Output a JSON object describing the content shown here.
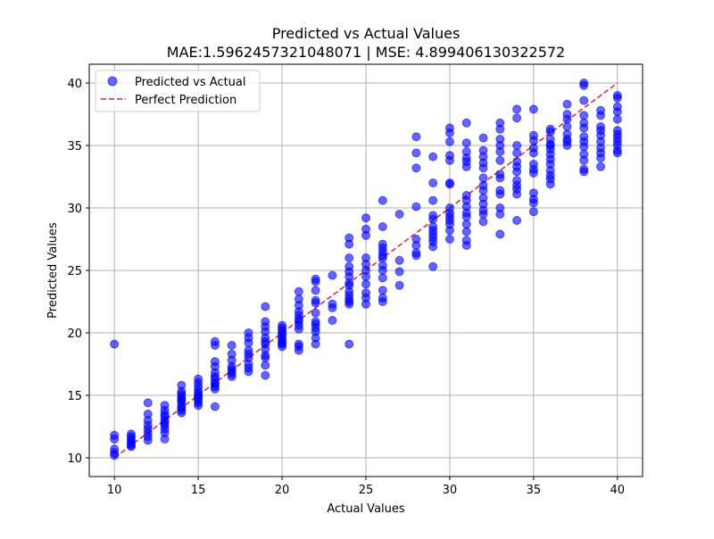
{
  "chart_data": {
    "type": "scatter",
    "title": "Predicted vs Actual Values",
    "subtitle": "MAE:1.5962457321048071 | MSE: 4.899406130322572",
    "xlabel": "Actual Values",
    "ylabel": "Predicted Values",
    "xlim": [
      8.5,
      41.5
    ],
    "ylim": [
      8.5,
      41.5
    ],
    "xticks": [
      10,
      15,
      20,
      25,
      30,
      35,
      40
    ],
    "yticks": [
      10,
      15,
      20,
      25,
      30,
      35,
      40
    ],
    "grid": true,
    "legend_position": "top-left",
    "legend": [
      "Predicted vs Actual",
      "Perfect Prediction"
    ],
    "colors": {
      "points": "#0000ff",
      "reference_line": "#d62728",
      "grid": "#b0b0b0"
    },
    "series": [
      {
        "name": "Predicted vs Actual",
        "type": "scatter",
        "x": [
          10,
          10,
          10,
          10,
          10,
          10,
          11,
          11,
          11,
          11,
          11,
          11,
          11,
          12,
          12,
          12,
          12,
          12,
          12,
          12,
          12,
          13,
          13,
          13,
          13,
          13,
          13,
          13,
          13,
          13,
          13,
          14,
          14,
          14,
          14,
          14,
          14,
          14,
          14,
          14,
          14,
          14,
          15,
          15,
          15,
          15,
          15,
          15,
          15,
          15,
          15,
          15,
          15,
          16,
          16,
          16,
          16,
          16,
          16,
          16,
          16,
          16,
          16,
          16,
          16,
          17,
          17,
          17,
          17,
          17,
          17,
          17,
          17,
          18,
          18,
          18,
          18,
          18,
          18,
          18,
          18,
          18,
          19,
          19,
          19,
          19,
          19,
          19,
          19,
          19,
          19,
          19,
          19,
          19,
          20,
          20,
          20,
          20,
          20,
          20,
          20,
          20,
          20,
          20,
          21,
          21,
          21,
          21,
          21,
          21,
          21,
          21,
          21,
          21,
          21,
          21,
          22,
          22,
          22,
          22,
          22,
          22,
          22,
          22,
          22,
          22,
          22,
          22,
          23,
          23,
          23,
          23,
          24,
          24,
          24,
          24,
          24,
          24,
          24,
          24,
          24,
          24,
          24,
          24,
          24,
          24,
          25,
          25,
          25,
          25,
          25,
          25,
          25,
          25,
          25,
          25,
          25,
          26,
          26,
          26,
          26,
          26,
          26,
          26,
          26,
          26,
          26,
          26,
          26,
          26,
          27,
          27,
          27,
          27,
          28,
          28,
          28,
          28,
          28,
          28,
          28,
          28,
          29,
          29,
          29,
          29,
          29,
          29,
          29,
          29,
          29,
          29,
          29,
          29,
          30,
          30,
          30,
          30,
          30,
          30,
          30,
          30,
          30,
          30,
          30,
          30,
          30,
          30,
          31,
          31,
          31,
          31,
          31,
          31,
          31,
          31,
          31,
          31,
          31,
          31,
          31,
          31,
          31,
          32,
          32,
          32,
          32,
          32,
          32,
          32,
          32,
          32,
          32,
          32,
          32,
          32,
          33,
          33,
          33,
          33,
          33,
          33,
          33,
          33,
          33,
          33,
          33,
          33,
          33,
          34,
          34,
          34,
          34,
          34,
          34,
          34,
          34,
          34,
          34,
          34,
          34,
          35,
          35,
          35,
          35,
          35,
          35,
          35,
          35,
          35,
          35,
          35,
          35,
          36,
          36,
          36,
          36,
          36,
          36,
          36,
          36,
          36,
          36,
          36,
          36,
          36,
          37,
          37,
          37,
          37,
          37,
          37,
          37,
          37,
          38,
          38,
          38,
          38,
          38,
          38,
          38,
          38,
          38,
          38,
          38,
          38,
          38,
          39,
          39,
          39,
          39,
          39,
          39,
          39,
          39,
          39,
          39,
          40,
          40,
          40,
          40,
          40,
          40,
          40,
          40,
          40,
          40,
          40,
          40
        ],
        "y": [
          19.1,
          11.8,
          11.5,
          10.7,
          10.4,
          10.2,
          11.9,
          11.7,
          11.5,
          11.3,
          11.2,
          11.0,
          10.9,
          14.4,
          13.5,
          13.0,
          12.6,
          12.3,
          12.0,
          11.7,
          11.4,
          14.2,
          13.8,
          13.5,
          13.3,
          13.0,
          12.8,
          12.6,
          12.3,
          12.0,
          11.5,
          15.8,
          15.3,
          15.1,
          14.9,
          14.7,
          14.6,
          14.4,
          14.1,
          14.0,
          13.8,
          13.6,
          16.3,
          16.0,
          15.7,
          15.4,
          15.2,
          15.0,
          14.9,
          14.8,
          14.6,
          14.4,
          14.2,
          19.3,
          19.0,
          17.7,
          17.3,
          16.8,
          16.5,
          16.3,
          16.0,
          15.9,
          15.7,
          15.5,
          14.1,
          19.0,
          18.3,
          17.8,
          17.3,
          17.1,
          16.9,
          16.7,
          16.5,
          20.0,
          19.6,
          19.2,
          18.6,
          18.3,
          18.0,
          17.5,
          17.2,
          16.9,
          22.1,
          20.9,
          20.5,
          20.1,
          19.6,
          19.3,
          19.1,
          18.7,
          18.2,
          18.0,
          17.4,
          16.6,
          20.6,
          20.4,
          20.2,
          20.0,
          19.8,
          19.6,
          19.4,
          19.2,
          19.1,
          18.9,
          23.3,
          22.7,
          22.2,
          21.7,
          21.4,
          21.1,
          20.9,
          20.6,
          20.3,
          19.1,
          18.9,
          18.6,
          24.3,
          24.1,
          23.4,
          22.6,
          22.4,
          21.6,
          20.9,
          20.7,
          20.4,
          20.1,
          19.6,
          19.1,
          24.6,
          22.3,
          22.0,
          21.0,
          27.6,
          27.1,
          26.0,
          25.3,
          24.9,
          24.5,
          24.0,
          23.8,
          23.3,
          23.0,
          22.7,
          22.5,
          22.3,
          19.1,
          29.2,
          28.3,
          27.8,
          26.0,
          25.5,
          25.0,
          24.5,
          23.9,
          23.2,
          22.8,
          22.3,
          30.6,
          28.5,
          27.1,
          26.8,
          26.5,
          26.2,
          26.0,
          25.4,
          25.0,
          24.4,
          23.4,
          22.8,
          22.5,
          29.5,
          25.8,
          24.9,
          23.8,
          35.7,
          34.4,
          33.2,
          30.1,
          27.5,
          27.0,
          26.4,
          26.2,
          34.1,
          32.0,
          30.6,
          29.4,
          29.1,
          28.5,
          28.2,
          27.9,
          27.6,
          27.3,
          26.9,
          25.3,
          36.4,
          36.0,
          35.3,
          34.2,
          33.8,
          32.0,
          31.9,
          30.0,
          29.6,
          29.3,
          29.0,
          28.7,
          28.2,
          27.5,
          36.8,
          35.2,
          34.5,
          34.0,
          33.7,
          33.3,
          31.0,
          30.6,
          30.1,
          29.6,
          29.3,
          28.7,
          28.1,
          27.4,
          27.0,
          35.6,
          34.6,
          34.1,
          33.6,
          33.2,
          32.4,
          31.8,
          31.4,
          30.8,
          30.3,
          29.8,
          29.5,
          28.9,
          36.8,
          36.3,
          35.5,
          35.0,
          34.5,
          33.8,
          32.7,
          32.4,
          31.4,
          31.1,
          30.0,
          29.5,
          27.9,
          37.9,
          37.2,
          35.0,
          34.4,
          33.7,
          33.3,
          32.9,
          32.2,
          31.8,
          31.5,
          31.1,
          29.0,
          37.9,
          35.8,
          35.4,
          34.8,
          34.4,
          33.5,
          33.1,
          32.8,
          31.2,
          30.7,
          30.4,
          29.7,
          36.3,
          36.1,
          35.5,
          35.0,
          34.7,
          34.3,
          33.9,
          33.5,
          33.0,
          32.6,
          32.3,
          35.1,
          31.9,
          38.3,
          37.5,
          37.1,
          36.5,
          35.9,
          35.5,
          35.3,
          35.0,
          40.0,
          39.8,
          38.6,
          37.4,
          36.8,
          36.4,
          35.7,
          35.3,
          34.9,
          34.3,
          33.8,
          33.1,
          32.9,
          37.8,
          37.4,
          36.5,
          36.2,
          35.8,
          35.3,
          34.8,
          34.4,
          34.0,
          33.3,
          39.0,
          38.8,
          38.1,
          37.7,
          37.1,
          36.2,
          35.9,
          35.6,
          35.3,
          35.0,
          34.6,
          34.4
        ]
      },
      {
        "name": "Perfect Prediction",
        "type": "line",
        "style": "dashed",
        "x": [
          10,
          40
        ],
        "y": [
          10,
          40
        ]
      }
    ]
  }
}
